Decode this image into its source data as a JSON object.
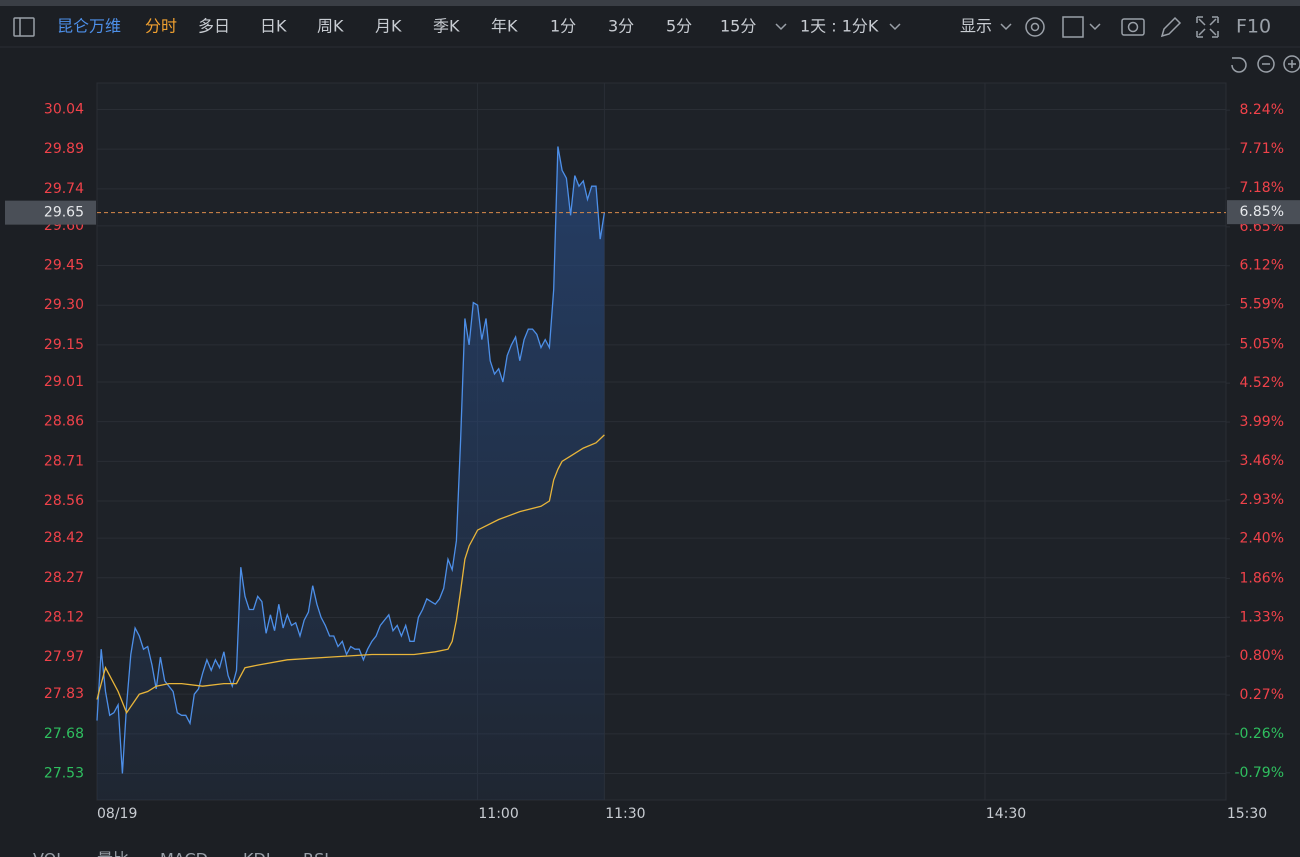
{
  "toolbar": {
    "stock": "昆仑万维",
    "tabs": [
      "分时",
      "多日",
      "日K",
      "周K",
      "月K",
      "季K",
      "年K",
      "1分",
      "3分",
      "5分",
      "15分"
    ],
    "period": "1天 : 1分K",
    "display": "显示",
    "f10": "F10"
  },
  "indicator_tabs": [
    "VOL",
    "量比",
    "MACD",
    "KDJ",
    "RSI"
  ],
  "chart_data": {
    "type": "line",
    "x": [
      0,
      1,
      2,
      3,
      4,
      5,
      6,
      7,
      8,
      9,
      10,
      11,
      12,
      13,
      14,
      15,
      16,
      17,
      18,
      19,
      20,
      21,
      22,
      23,
      24,
      25,
      26,
      27,
      28,
      29,
      30,
      31,
      32,
      33,
      34,
      35,
      36,
      37,
      38,
      39,
      40,
      41,
      42,
      43,
      44,
      45,
      46,
      47,
      48,
      49,
      50,
      51,
      52,
      53,
      54,
      55,
      56,
      57,
      58,
      59,
      60,
      61,
      62,
      63,
      64,
      65,
      66,
      67,
      68,
      69,
      70,
      71,
      72,
      73,
      74,
      75,
      76,
      77,
      78,
      79,
      80,
      81,
      82,
      83,
      84,
      85,
      86,
      87,
      88,
      89,
      90,
      91,
      92,
      93,
      94,
      95,
      96,
      97,
      98,
      99,
      100,
      101,
      102,
      103,
      104,
      105,
      106,
      107,
      108,
      109,
      110,
      111,
      112,
      113,
      114,
      115,
      116,
      117,
      118,
      119,
      120
    ],
    "series": [
      {
        "color": "#4d8fe8",
        "area": true,
        "values": [
          27.73,
          28.0,
          27.84,
          27.75,
          27.76,
          27.79,
          27.53,
          27.79,
          27.98,
          28.08,
          28.05,
          28.0,
          28.01,
          27.94,
          27.85,
          27.97,
          27.88,
          27.86,
          27.84,
          27.76,
          27.75,
          27.75,
          27.72,
          27.83,
          27.85,
          27.91,
          27.96,
          27.92,
          27.96,
          27.93,
          27.99,
          27.9,
          27.86,
          27.92,
          28.31,
          28.2,
          28.15,
          28.15,
          28.2,
          28.18,
          28.06,
          28.13,
          28.07,
          28.17,
          28.08,
          28.13,
          28.09,
          28.1,
          28.05,
          28.11,
          28.14,
          28.24,
          28.17,
          28.12,
          28.09,
          28.05,
          28.05,
          28.01,
          28.03,
          27.98,
          28.01,
          28.0,
          28.0,
          27.96,
          28.0,
          28.03,
          28.05,
          28.09,
          28.11,
          28.13,
          28.07,
          28.09,
          28.05,
          28.09,
          28.03,
          28.03,
          28.12,
          28.15,
          28.19,
          28.18,
          28.17,
          28.19,
          28.23,
          28.34,
          28.3,
          28.41,
          28.79,
          29.25,
          29.15,
          29.31,
          29.3,
          29.17,
          29.25,
          29.09,
          29.04,
          29.06,
          29.01,
          29.11,
          29.15,
          29.18,
          29.09,
          29.17,
          29.21,
          29.21,
          29.19,
          29.14,
          29.17,
          29.14,
          29.36,
          29.9,
          29.81,
          29.78,
          29.64,
          29.79,
          29.75,
          29.77,
          29.7,
          29.75,
          29.75,
          29.55,
          29.65
        ]
      },
      {
        "color": "#e8b53a",
        "x": [
          0,
          2,
          5,
          7,
          10,
          12,
          14,
          17,
          20,
          25,
          30,
          33,
          35,
          38,
          45,
          55,
          65,
          75,
          80,
          83,
          84,
          85,
          86,
          87,
          88,
          90,
          95,
          100,
          105,
          107,
          108,
          109,
          110,
          112,
          115,
          118,
          120
        ],
        "values": [
          27.81,
          27.93,
          27.84,
          27.76,
          27.83,
          27.84,
          27.86,
          27.87,
          27.87,
          27.86,
          27.87,
          27.87,
          27.93,
          27.94,
          27.96,
          27.97,
          27.98,
          27.98,
          27.99,
          28.0,
          28.03,
          28.11,
          28.22,
          28.34,
          28.39,
          28.45,
          28.49,
          28.52,
          28.54,
          28.56,
          28.64,
          28.68,
          28.71,
          28.73,
          28.76,
          28.78,
          28.81
        ]
      }
    ],
    "xlim": [
      0,
      267
    ],
    "xticks": [
      {
        "value": 0,
        "label": "08/19"
      },
      {
        "value": 90,
        "label": "11:00"
      },
      {
        "value": 120,
        "label": "11:30"
      },
      {
        "value": 210,
        "label": "14:30"
      },
      {
        "value": 267,
        "label": "15:30"
      }
    ],
    "ylim": [
      27.43,
      30.14
    ],
    "yticks": [
      30.04,
      29.89,
      29.74,
      {
        "value": 29.6,
        "label": "29.60"
      },
      29.45,
      {
        "value": 29.3,
        "label": "29.30"
      },
      29.15,
      29.01,
      28.86,
      28.71,
      28.56,
      28.42,
      28.27,
      28.12,
      27.97,
      27.83,
      27.68,
      27.53
    ],
    "y2lim": [
      -1.16,
      8.61
    ],
    "y2ticks": [
      {
        "value": 8.24,
        "label": "8.24%"
      },
      {
        "value": 7.71,
        "label": "7.71%"
      },
      {
        "value": 7.18,
        "label": "7.18%"
      },
      {
        "value": 6.65,
        "label": "6.65%"
      },
      {
        "value": 6.12,
        "label": "6.12%"
      },
      {
        "value": 5.59,
        "label": "5.59%"
      },
      {
        "value": 5.05,
        "label": "5.05%"
      },
      {
        "value": 4.52,
        "label": "4.52%"
      },
      {
        "value": 3.99,
        "label": "3.99%"
      },
      {
        "value": 3.46,
        "label": "3.46%"
      },
      {
        "value": 2.93,
        "label": "2.93%"
      },
      {
        "value": 2.4,
        "label": "2.40%"
      },
      {
        "value": 1.86,
        "label": "1.86%"
      },
      {
        "value": 1.33,
        "label": "1.33%"
      },
      {
        "value": 0.8,
        "label": "0.80%"
      },
      {
        "value": 0.27,
        "label": "0.27%"
      },
      {
        "value": -0.26,
        "label": "-0.26%"
      },
      {
        "value": -0.79,
        "label": "-0.79%"
      }
    ],
    "last_price": {
      "value": 29.65,
      "label": "29.65"
    },
    "last_change": {
      "value": 6.85,
      "label": "6.85%"
    },
    "grid": true
  }
}
